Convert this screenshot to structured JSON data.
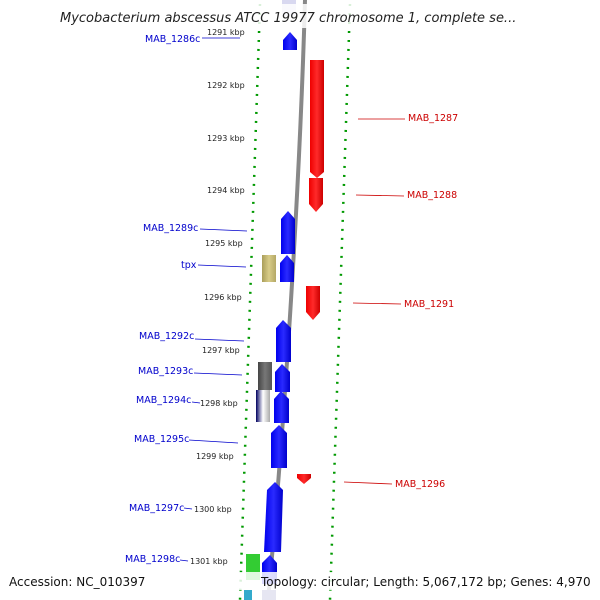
{
  "title": "Mycobacterium abscessus ATCC 19977 chromosome 1, complete se...",
  "footer": {
    "accession": "Accession: NC_010397",
    "summary": "Topology: circular; Length: 5,067,172 bp; Genes: 4,970"
  },
  "ruler_ticks": [
    "1291 kbp",
    "1292 kbp",
    "1293 kbp",
    "1294 kbp",
    "1295 kbp",
    "1296 kbp",
    "1297 kbp",
    "1298 kbp",
    "1299 kbp",
    "1300 kbp",
    "1301 kbp"
  ],
  "genes_left": [
    "MAB_1286c",
    "MAB_1289c",
    "tpx",
    "MAB_1292c",
    "MAB_1293c",
    "MAB_1294c",
    "MAB_1295c",
    "MAB_1297c",
    "MAB_1298c"
  ],
  "genes_right": [
    "MAB_1287",
    "MAB_1288",
    "MAB_1291",
    "MAB_1296"
  ],
  "colors": {
    "reverse_strand": "#0000ee",
    "forward_strand": "#ee0000",
    "backbone": "#888888",
    "dotted_ruler": "#009900",
    "left_label": "#0000cc",
    "right_label": "#cc0000",
    "tpx_gene": "#c8bc78",
    "gray_gene": "#555555",
    "green_gene": "#33cc33"
  }
}
